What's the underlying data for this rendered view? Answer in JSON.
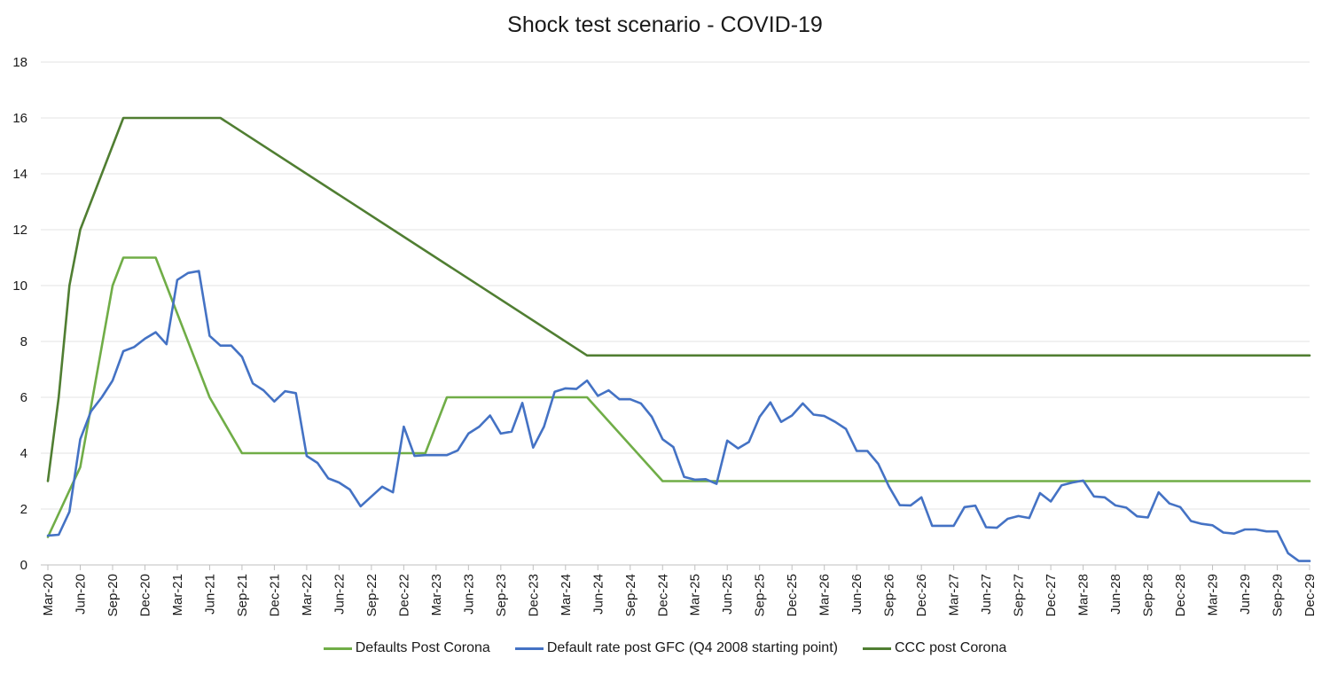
{
  "chart_data": {
    "type": "line",
    "title": "Shock test scenario - COVID-19",
    "xlabel": "",
    "ylabel": "",
    "ylim": [
      0,
      18
    ],
    "yticks": [
      0,
      2,
      4,
      6,
      8,
      10,
      12,
      14,
      16,
      18
    ],
    "grid": "horizontal",
    "legend_position": "bottom",
    "x_tick_labels": [
      "Mar-20",
      "Jun-20",
      "Sep-20",
      "Dec-20",
      "Mar-21",
      "Jun-21",
      "Sep-21",
      "Dec-21",
      "Mar-22",
      "Jun-22",
      "Sep-22",
      "Dec-22",
      "Mar-23",
      "Jun-23",
      "Sep-23",
      "Dec-23",
      "Mar-24",
      "Jun-24",
      "Sep-24",
      "Dec-24",
      "Mar-25",
      "Jun-25",
      "Sep-25",
      "Dec-25",
      "Mar-26",
      "Jun-26",
      "Sep-26",
      "Dec-26",
      "Mar-27",
      "Jun-27",
      "Sep-27",
      "Dec-27",
      "Mar-28",
      "Jun-28",
      "Sep-28",
      "Dec-28",
      "Mar-29",
      "Jun-29",
      "Sep-29",
      "Dec-29"
    ],
    "series": [
      {
        "name": "Defaults Post Corona",
        "color": "#70ad47",
        "points": [
          [
            "Mar-20",
            1
          ],
          [
            "Jun-20",
            3.5
          ],
          [
            "Sep-20",
            10
          ],
          [
            "Oct-20",
            11
          ],
          [
            "Jan-21",
            11
          ],
          [
            "Jun-21",
            6
          ],
          [
            "Sep-21",
            4
          ],
          [
            "Feb-23",
            4
          ],
          [
            "Apr-23",
            6
          ],
          [
            "May-24",
            6
          ],
          [
            "Dec-24",
            3
          ],
          [
            "Dec-29",
            3
          ]
        ]
      },
      {
        "name": "Default rate post GFC (Q4 2008 starting point)",
        "color": "#4472c4",
        "points": [
          [
            "Mar-20",
            1.05
          ],
          [
            "Apr-20",
            1.08
          ],
          [
            "May-20",
            1.9
          ],
          [
            "Jun-20",
            4.5
          ],
          [
            "Jul-20",
            5.5
          ],
          [
            "Aug-20",
            6.0
          ],
          [
            "Sep-20",
            6.6
          ],
          [
            "Oct-20",
            7.65
          ],
          [
            "Nov-20",
            7.8
          ],
          [
            "Dec-20",
            8.1
          ],
          [
            "Jan-21",
            8.33
          ],
          [
            "Feb-21",
            7.9
          ],
          [
            "Mar-21",
            10.2
          ],
          [
            "Apr-21",
            10.45
          ],
          [
            "May-21",
            10.52
          ],
          [
            "Jun-21",
            8.2
          ],
          [
            "Jul-21",
            7.85
          ],
          [
            "Aug-21",
            7.85
          ],
          [
            "Sep-21",
            7.45
          ],
          [
            "Oct-21",
            6.5
          ],
          [
            "Nov-21",
            6.25
          ],
          [
            "Dec-21",
            5.85
          ],
          [
            "Jan-22",
            6.22
          ],
          [
            "Feb-22",
            6.15
          ],
          [
            "Mar-22",
            3.9
          ],
          [
            "Apr-22",
            3.65
          ],
          [
            "May-22",
            3.1
          ],
          [
            "Jun-22",
            2.95
          ],
          [
            "Jul-22",
            2.7
          ],
          [
            "Aug-22",
            2.1
          ],
          [
            "Sep-22",
            2.45
          ],
          [
            "Oct-22",
            2.8
          ],
          [
            "Nov-22",
            2.6
          ],
          [
            "Dec-22",
            4.95
          ],
          [
            "Jan-23",
            3.9
          ],
          [
            "Feb-23",
            3.93
          ],
          [
            "Mar-23",
            3.93
          ],
          [
            "Apr-23",
            3.93
          ],
          [
            "May-23",
            4.1
          ],
          [
            "Jun-23",
            4.7
          ],
          [
            "Jul-23",
            4.95
          ],
          [
            "Aug-23",
            5.35
          ],
          [
            "Sep-23",
            4.7
          ],
          [
            "Oct-23",
            4.77
          ],
          [
            "Nov-23",
            5.8
          ],
          [
            "Dec-23",
            4.2
          ],
          [
            "Jan-24",
            4.95
          ],
          [
            "Feb-24",
            6.2
          ],
          [
            "Mar-24",
            6.32
          ],
          [
            "Apr-24",
            6.3
          ],
          [
            "May-24",
            6.6
          ],
          [
            "Jun-24",
            6.05
          ],
          [
            "Jul-24",
            6.25
          ],
          [
            "Aug-24",
            5.93
          ],
          [
            "Sep-24",
            5.93
          ],
          [
            "Oct-24",
            5.78
          ],
          [
            "Nov-24",
            5.3
          ],
          [
            "Dec-24",
            4.5
          ],
          [
            "Jan-25",
            4.22
          ],
          [
            "Feb-25",
            3.15
          ],
          [
            "Mar-25",
            3.05
          ],
          [
            "Apr-25",
            3.07
          ],
          [
            "May-25",
            2.9
          ],
          [
            "Jun-25",
            4.45
          ],
          [
            "Jul-25",
            4.17
          ],
          [
            "Aug-25",
            4.4
          ],
          [
            "Sep-25",
            5.3
          ],
          [
            "Oct-25",
            5.82
          ],
          [
            "Nov-25",
            5.12
          ],
          [
            "Dec-25",
            5.35
          ],
          [
            "Jan-26",
            5.78
          ],
          [
            "Feb-26",
            5.38
          ],
          [
            "Mar-26",
            5.33
          ],
          [
            "Apr-26",
            5.12
          ],
          [
            "May-26",
            4.87
          ],
          [
            "Jun-26",
            4.08
          ],
          [
            "Jul-26",
            4.08
          ],
          [
            "Aug-26",
            3.62
          ],
          [
            "Sep-26",
            2.8
          ],
          [
            "Oct-26",
            2.14
          ],
          [
            "Nov-26",
            2.13
          ],
          [
            "Dec-26",
            2.42
          ],
          [
            "Jan-27",
            1.4
          ],
          [
            "Feb-27",
            1.4
          ],
          [
            "Mar-27",
            1.4
          ],
          [
            "Apr-27",
            2.07
          ],
          [
            "May-27",
            2.12
          ],
          [
            "Jun-27",
            1.35
          ],
          [
            "Jul-27",
            1.33
          ],
          [
            "Aug-27",
            1.65
          ],
          [
            "Sep-27",
            1.75
          ],
          [
            "Oct-27",
            1.68
          ],
          [
            "Nov-27",
            2.57
          ],
          [
            "Dec-27",
            2.27
          ],
          [
            "Jan-28",
            2.85
          ],
          [
            "Feb-28",
            2.95
          ],
          [
            "Mar-28",
            3.02
          ],
          [
            "Apr-28",
            2.45
          ],
          [
            "May-28",
            2.42
          ],
          [
            "Jun-28",
            2.13
          ],
          [
            "Jul-28",
            2.05
          ],
          [
            "Aug-28",
            1.74
          ],
          [
            "Sep-28",
            1.7
          ],
          [
            "Oct-28",
            2.6
          ],
          [
            "Nov-28",
            2.2
          ],
          [
            "Dec-28",
            2.07
          ],
          [
            "Jan-29",
            1.57
          ],
          [
            "Feb-29",
            1.47
          ],
          [
            "Mar-29",
            1.42
          ],
          [
            "Apr-29",
            1.16
          ],
          [
            "May-29",
            1.12
          ],
          [
            "Jun-29",
            1.27
          ],
          [
            "Jul-29",
            1.27
          ],
          [
            "Aug-29",
            1.2
          ],
          [
            "Sep-29",
            1.2
          ],
          [
            "Oct-29",
            0.42
          ],
          [
            "Nov-29",
            0.14
          ],
          [
            "Dec-29",
            0.14
          ]
        ]
      },
      {
        "name": "CCC post Corona",
        "color": "#507e32",
        "points": [
          [
            "Mar-20",
            3
          ],
          [
            "Apr-20",
            6
          ],
          [
            "May-20",
            10
          ],
          [
            "Jun-20",
            12
          ],
          [
            "Oct-20",
            16
          ],
          [
            "Jul-21",
            16
          ],
          [
            "May-24",
            7.5
          ],
          [
            "Dec-29",
            7.5
          ]
        ]
      }
    ]
  }
}
